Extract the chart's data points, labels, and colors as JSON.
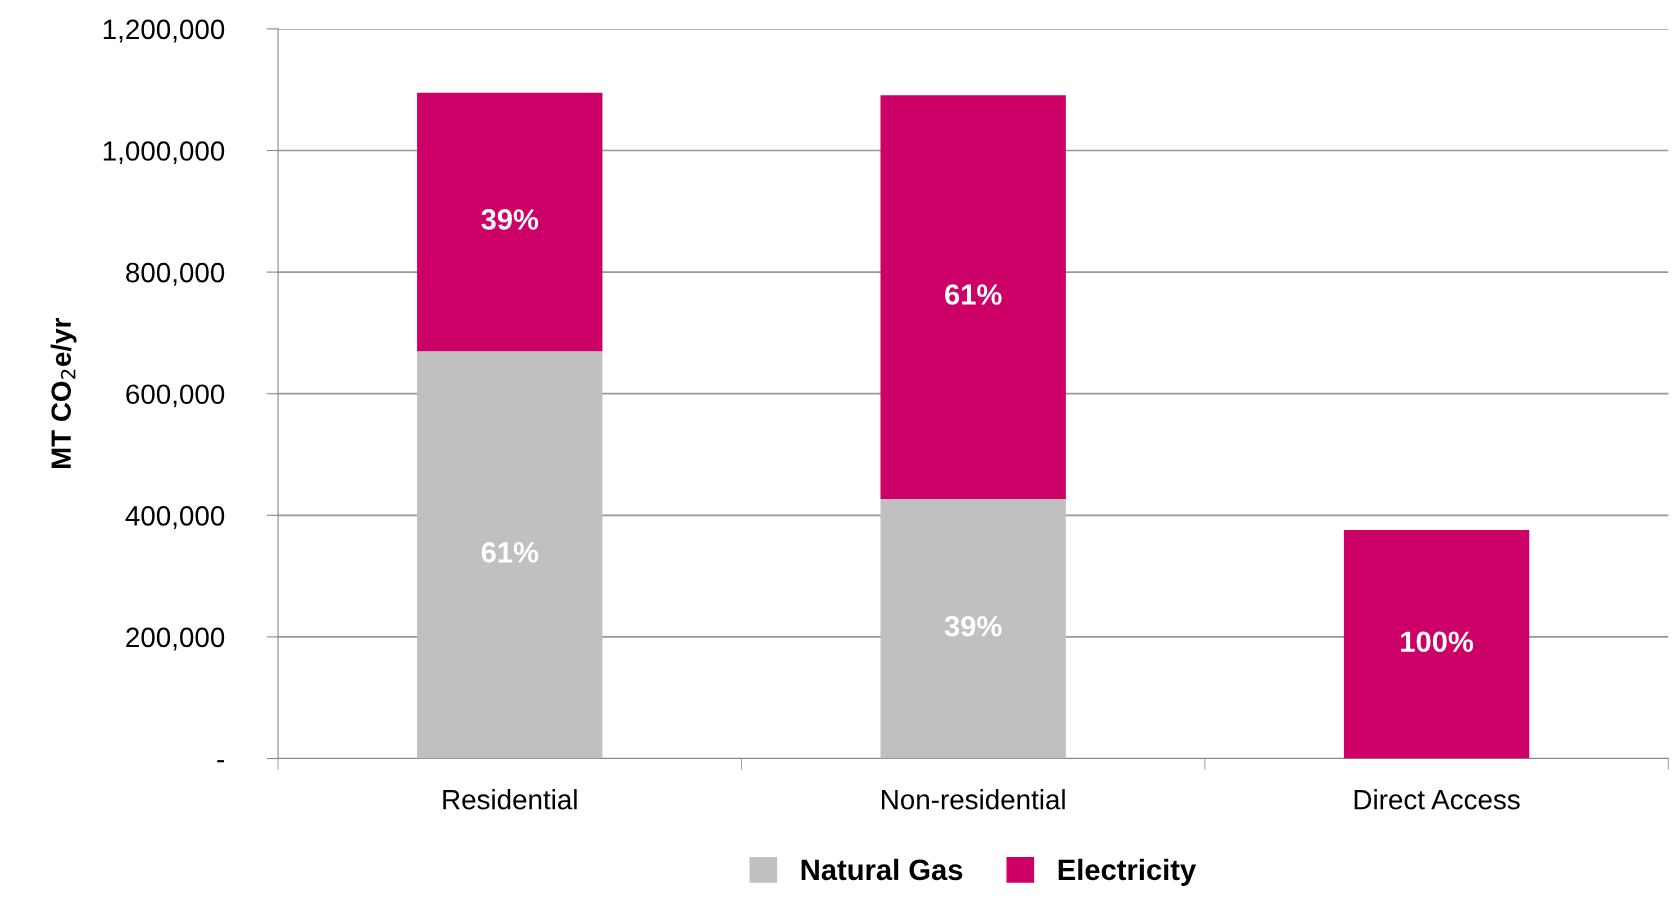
{
  "chart_data": {
    "type": "bar",
    "stacked": true,
    "ylabel": "MT CO$_{2}$e/yr",
    "categories": [
      "Residential",
      "Non-residential",
      "Direct Access"
    ],
    "series": [
      {
        "name": "Natural Gas",
        "color": "#c0c0c0",
        "values": [
          670000,
          427000,
          null
        ]
      },
      {
        "name": "Electricity",
        "color": "#cc0066",
        "values": [
          425000,
          664000,
          376000
        ]
      }
    ],
    "annotations": [
      "61%",
      "39%",
      "39%",
      "61%",
      "100%"
    ],
    "ylim": [
      0,
      1200000
    ],
    "yticks": [
      {
        "value": 0,
        "label": "-"
      },
      {
        "value": 200000,
        "label": "200,000"
      },
      {
        "value": 400000,
        "label": "400,000"
      },
      {
        "value": 600000,
        "label": "600,000"
      },
      {
        "value": 800000,
        "label": "800,000"
      },
      {
        "value": 1000000,
        "label": "1,000,000"
      },
      {
        "value": 1200000,
        "label": "1,200,000"
      }
    ],
    "grid": "y",
    "legend": "bottom"
  }
}
